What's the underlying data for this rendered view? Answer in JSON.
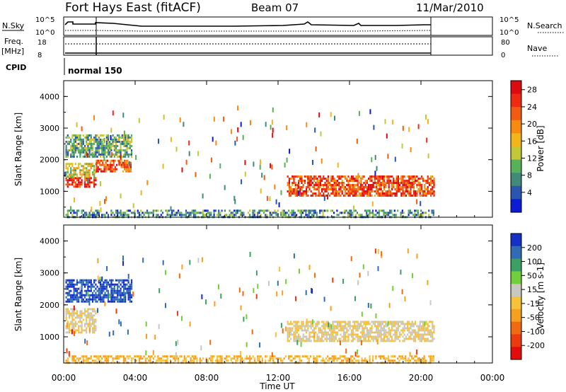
{
  "header": {
    "station": "Fort Hays East (fitACF)",
    "beam": "Beam 07",
    "date": "11/Mar/2010"
  },
  "summary": {
    "nsky_label": "N.Sky",
    "nsky_ticks": [
      "10^5",
      "10^0"
    ],
    "nsearch_label": "N.Search",
    "nsearch_ticks": [
      "10^5",
      "10^0"
    ],
    "freq_label": "Freq.",
    "freq_unit": "[MHz]",
    "freq_ticks": [
      "18",
      "8"
    ],
    "nave_label": "Nave",
    "nave_ticks": [
      "80",
      "0"
    ],
    "cpid_label": "CPID",
    "cpid_value": "normal 150"
  },
  "chart_data": [
    {
      "type": "heatmap",
      "name": "power",
      "ylabel": "Slant Range [km]",
      "xlabel": "Time UT",
      "ylim": [
        180,
        4500
      ],
      "xlim": [
        0,
        24
      ],
      "yticks": [
        "1000",
        "2000",
        "3000",
        "4000"
      ],
      "xticks": [
        "00:00",
        "04:00",
        "08:00",
        "12:00",
        "16:00",
        "20:00",
        "00:00"
      ],
      "colorbar_label": "Power [dB]",
      "colorbar_ticks": [
        "4",
        "8",
        "12",
        "16",
        "20",
        "24",
        "28"
      ],
      "colorbar_colors": [
        "#0c1cd6",
        "#2a55b0",
        "#3f8a78",
        "#56b157",
        "#c2c838",
        "#f2b61b",
        "#f88a12",
        "#f25b12",
        "#ee2a10",
        "#dd0a10"
      ],
      "echo_regions": [
        {
          "t": [
            0.1,
            1.8
          ],
          "r": [
            1150,
            1450
          ],
          "power_db": 26
        },
        {
          "t": [
            0.1,
            1.8
          ],
          "r": [
            1450,
            1900
          ],
          "power_db": 15
        },
        {
          "t": [
            0.1,
            3.8
          ],
          "r": [
            2100,
            2800
          ],
          "power_db": 10
        },
        {
          "t": [
            1.8,
            3.8
          ],
          "r": [
            1600,
            2000
          ],
          "power_db": 24
        },
        {
          "t": [
            12.5,
            20.7
          ],
          "r": [
            850,
            1500
          ],
          "power_db": 24
        },
        {
          "t": [
            0.1,
            20.7
          ],
          "r": [
            180,
            420
          ],
          "power_db": 8
        }
      ]
    },
    {
      "type": "heatmap",
      "name": "velocity",
      "ylabel": "Slant Range [km]",
      "xlabel": "Time UT",
      "ylim": [
        180,
        4500
      ],
      "xlim": [
        0,
        24
      ],
      "yticks": [
        "1000",
        "2000",
        "3000",
        "4000"
      ],
      "xticks": [
        "00:00",
        "04:00",
        "08:00",
        "12:00",
        "16:00",
        "20:00",
        "00:00"
      ],
      "colorbar_label": "Velocity [m s-1]",
      "colorbar_ticks": [
        "200",
        "100",
        "50",
        "15",
        "-15",
        "-50",
        "-100",
        "-200"
      ],
      "colorbar_colors": [
        "#1530c8",
        "#2f6cb5",
        "#3c9f63",
        "#6fd03c",
        "#c8c8c0",
        "#f5c23a",
        "#f79f1e",
        "#f06a12",
        "#ec3a0f",
        "#e20c0c"
      ],
      "echo_regions": [
        {
          "t": [
            0.1,
            1.8
          ],
          "r": [
            1150,
            1900
          ],
          "velocity_ms": 0
        },
        {
          "t": [
            0.1,
            3.8
          ],
          "r": [
            2100,
            2800
          ],
          "velocity_ms": 180
        },
        {
          "t": [
            12.5,
            20.7
          ],
          "r": [
            850,
            1500
          ],
          "velocity_ms": 0
        },
        {
          "t": [
            0.1,
            20.7
          ],
          "r": [
            180,
            420
          ],
          "velocity_ms": -40
        }
      ]
    }
  ]
}
